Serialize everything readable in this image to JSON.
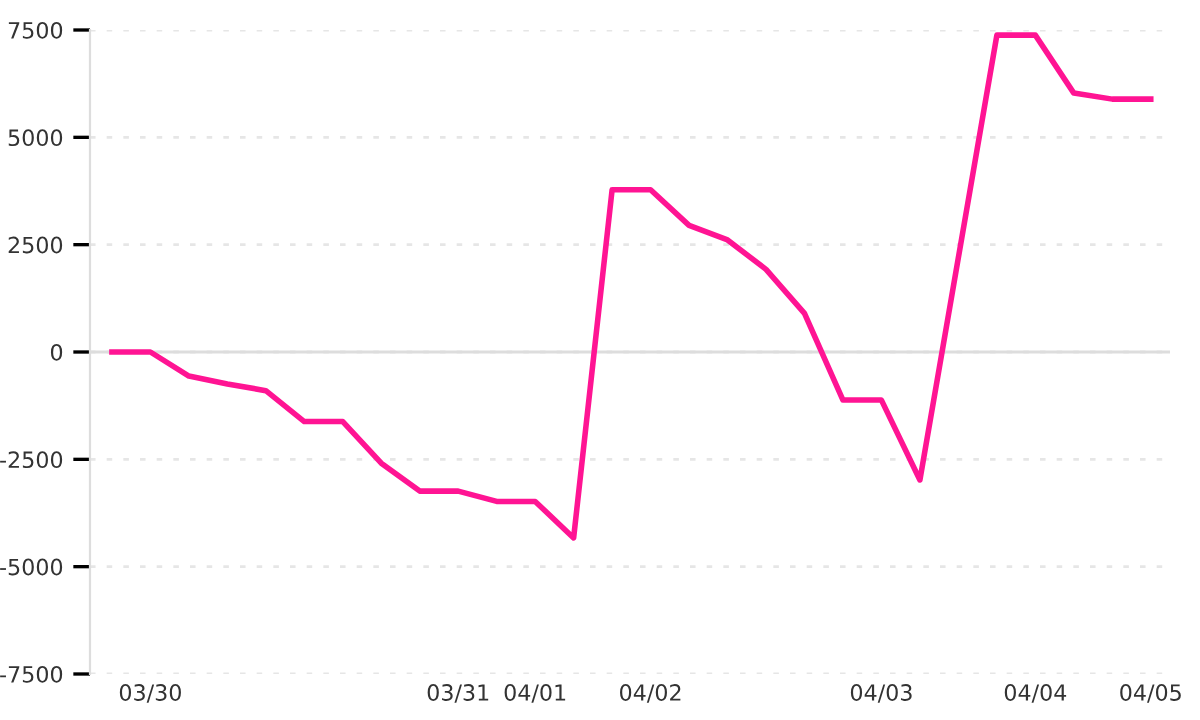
{
  "chart_data": {
    "type": "line",
    "categories": [
      null,
      "03/30",
      null,
      null,
      null,
      null,
      null,
      null,
      null,
      "03/31",
      null,
      "04/01",
      null,
      null,
      "04/02",
      null,
      null,
      null,
      null,
      null,
      "04/03",
      null,
      null,
      null,
      "04/04",
      null,
      null,
      "04/05"
    ],
    "series": [
      {
        "color": "#ff1493",
        "values": [
          0,
          0,
          -560,
          -745,
          -900,
          -1620,
          -1620,
          -2590,
          -3240,
          -3240,
          -3480,
          -3480,
          -4330,
          3780,
          3780,
          2950,
          2610,
          1925,
          900,
          -1120,
          -1120,
          -2980,
          2200,
          7380,
          7380,
          6030,
          5890,
          5890
        ]
      }
    ],
    "ylim": [
      -7500,
      7500
    ],
    "yticks": [
      -7500,
      -5000,
      -2500,
      0,
      2500,
      5000,
      7500
    ],
    "grid": "y",
    "marker": "none",
    "line_style": "solid",
    "legend": false,
    "ref_lines": [
      {
        "axis": "y",
        "value": 0,
        "color": "#dddddd",
        "line_style": "solid"
      }
    ]
  }
}
